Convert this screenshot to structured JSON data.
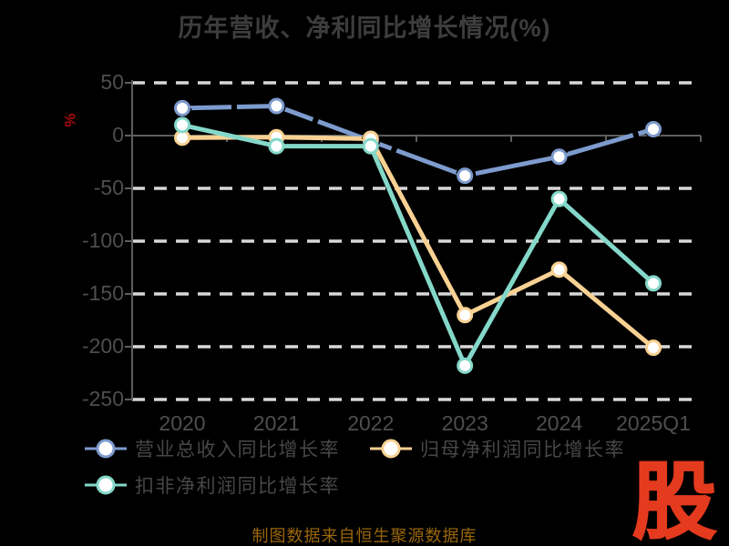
{
  "chart_data": {
    "type": "line",
    "title": "历年营收、净利同比增长情况(%)",
    "ylabel": "%",
    "xlabel": "",
    "categories": [
      "2020",
      "2021",
      "2022",
      "2023",
      "2024",
      "2025Q1"
    ],
    "series": [
      {
        "name": "营业总收入同比增长率",
        "color": "#7d9bcd",
        "sketch": true,
        "values": [
          26,
          28,
          -5,
          -38,
          -20,
          6
        ]
      },
      {
        "name": "归母净利润同比增长率",
        "color": "#f8d193",
        "values": [
          -2,
          -1.5,
          -3,
          -170,
          -127,
          -201
        ]
      },
      {
        "name": "扣非净利润同比增长率",
        "color": "#84d8c9",
        "values": [
          10,
          -10,
          -10,
          -218,
          -60,
          -140
        ]
      }
    ],
    "y_ticks": [
      50,
      0,
      -50,
      -100,
      -150,
      -200,
      -250
    ],
    "ylim": [
      -265,
      60
    ],
    "grid": "horizontal-dashed",
    "legend_position": "bottom-left",
    "marker": "circle-white-fill"
  },
  "footer": {
    "text": "制图数据来自恒生聚源数据库"
  },
  "watermark": {
    "text": "股"
  },
  "style": {
    "background": "#000000",
    "grid_color": "#d8d8d8",
    "axis_color": "#5d5d5d",
    "tick_text": "#4e4e4e",
    "title_text": "#3d3d3d",
    "legend_text": "#474747",
    "footer_text": "#9a670b",
    "ylabel_text": "#ab0a0a",
    "watermark_color": "#e43a1e",
    "marker_fill": "#ffffff",
    "sketch_color": "#000000"
  }
}
